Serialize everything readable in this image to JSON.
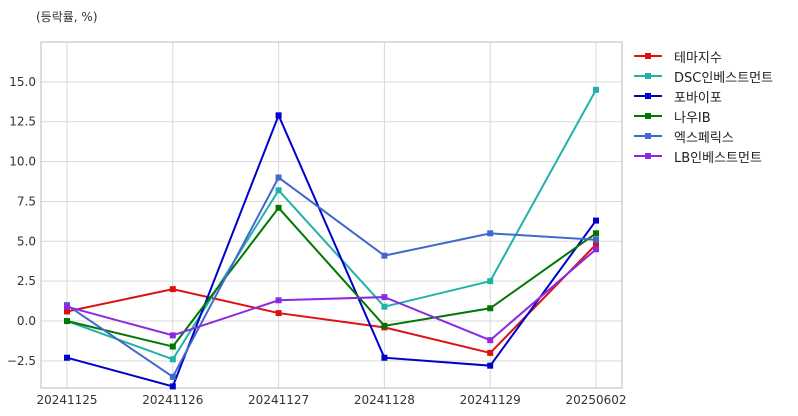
{
  "chart_data": {
    "type": "line",
    "unit_label": "(등락률, %)",
    "categories": [
      "20241125",
      "20241126",
      "20241127",
      "20241128",
      "20241129",
      "20250602"
    ],
    "ylim": [
      -4.2,
      17.5
    ],
    "yticks": [
      -2.5,
      0.0,
      2.5,
      5.0,
      7.5,
      10.0,
      12.5,
      15.0
    ],
    "ytick_labels": [
      "−2.5",
      "0.0",
      "2.5",
      "5.0",
      "7.5",
      "10.0",
      "12.5",
      "15.0"
    ],
    "grid": true,
    "legend_position": "right",
    "series": [
      {
        "name": "테마지수",
        "color": "#dd1111",
        "values": [
          0.6,
          2.0,
          0.5,
          -0.4,
          -2.0,
          4.8
        ]
      },
      {
        "name": "DSC인베스트먼트",
        "color": "#20b2aa",
        "values": [
          0.0,
          -2.4,
          8.2,
          0.9,
          2.5,
          14.5
        ]
      },
      {
        "name": "포바이포",
        "color": "#0000cc",
        "values": [
          -2.3,
          -4.1,
          12.9,
          -2.3,
          -2.8,
          6.3
        ]
      },
      {
        "name": "나우IB",
        "color": "#007700",
        "values": [
          0.0,
          -1.6,
          7.1,
          -0.3,
          0.8,
          5.5
        ]
      },
      {
        "name": "엑스페릭스",
        "color": "#4169cc",
        "values": [
          1.0,
          -3.5,
          9.0,
          4.1,
          5.5,
          5.1
        ]
      },
      {
        "name": "LB인베스트먼트",
        "color": "#8a2be2",
        "values": [
          0.9,
          -0.9,
          1.3,
          1.5,
          -1.2,
          4.5
        ]
      }
    ]
  }
}
